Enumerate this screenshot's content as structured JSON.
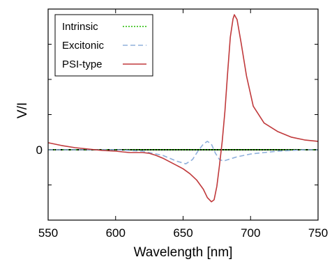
{
  "chart_data": {
    "type": "line",
    "xlabel": "Wavelength [nm]",
    "ylabel": "V/I",
    "xlim": [
      550,
      750
    ],
    "ylim": [
      -1.0,
      2.0
    ],
    "x_ticks": [
      550,
      600,
      650,
      700,
      750
    ],
    "y_ticks": [
      0
    ],
    "y_minor_ticks": [
      -0.5,
      0.5,
      1.0,
      1.5
    ],
    "grid": false,
    "zero_line": true,
    "legend_position": "top-left",
    "series": [
      {
        "name": "Intrinsic",
        "style": "dotted",
        "color": "#22bb00",
        "x": [
          550,
          750
        ],
        "y": [
          0,
          0
        ]
      },
      {
        "name": "Excitonic",
        "style": "dashed",
        "color": "#8fb0dc",
        "x": [
          550,
          600,
          620,
          635,
          645,
          652,
          657,
          661,
          665,
          668,
          671,
          674,
          677,
          680,
          685,
          690,
          700,
          710,
          720,
          730,
          740,
          750
        ],
        "y": [
          0,
          0,
          -0.02,
          -0.08,
          -0.16,
          -0.2,
          -0.14,
          -0.02,
          0.08,
          0.12,
          0.08,
          -0.05,
          -0.14,
          -0.16,
          -0.13,
          -0.1,
          -0.06,
          -0.04,
          -0.02,
          -0.01,
          0,
          0
        ]
      },
      {
        "name": "PSI-type",
        "style": "solid",
        "color": "#c0393b",
        "x": [
          550,
          560,
          570,
          580,
          590,
          600,
          610,
          620,
          625,
          630,
          635,
          640,
          645,
          650,
          655,
          660,
          665,
          668,
          671,
          673,
          675,
          677,
          679,
          681,
          683,
          685,
          687,
          688,
          690,
          693,
          697,
          702,
          710,
          720,
          730,
          740,
          750
        ],
        "y": [
          0.1,
          0.06,
          0.03,
          0.01,
          -0.01,
          -0.02,
          -0.04,
          -0.04,
          -0.05,
          -0.08,
          -0.12,
          -0.17,
          -0.22,
          -0.27,
          -0.34,
          -0.43,
          -0.56,
          -0.68,
          -0.74,
          -0.71,
          -0.52,
          -0.22,
          0.12,
          0.55,
          1.1,
          1.6,
          1.86,
          1.92,
          1.85,
          1.52,
          1.05,
          0.62,
          0.38,
          0.26,
          0.18,
          0.14,
          0.12
        ]
      }
    ]
  }
}
